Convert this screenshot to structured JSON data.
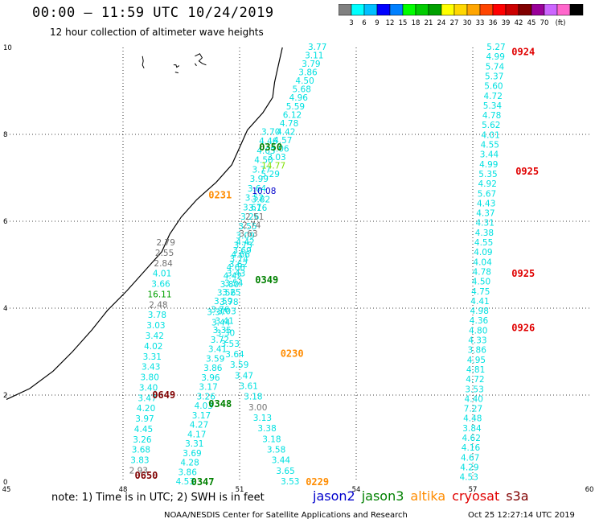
{
  "title": "00:00 – 11:59 UTC 10/24/2019",
  "subtitle": "12 hour collection of altimeter wave heights",
  "colorbar": {
    "colors": [
      "#808080",
      "#00ffff",
      "#00bfff",
      "#0000ff",
      "#0080ff",
      "#00ff00",
      "#00cc00",
      "#00a000",
      "#ffff00",
      "#ffd700",
      "#ffa500",
      "#ff4500",
      "#ff0000",
      "#cc0000",
      "#800000",
      "#990099",
      "#cc66ff",
      "#ff66cc",
      "#000000"
    ],
    "labels": [
      "3",
      "6",
      "9",
      "12",
      "15",
      "18",
      "21",
      "24",
      "27",
      "30",
      "33",
      "36",
      "39",
      "42",
      "45",
      "70",
      "(ft)"
    ]
  },
  "axes": {
    "x_ticks": [
      "45",
      "48",
      "51",
      "54",
      "57",
      "60"
    ],
    "y_ticks": [
      "0",
      "2",
      "4",
      "6",
      "8",
      "10"
    ]
  },
  "colors": {
    "cyan": "#00e0e0",
    "jason2": "#0000cc",
    "jason3": "#008000",
    "altika": "#ff8c00",
    "cryosat": "#e00000",
    "s3a": "#800000",
    "gray": "#707070",
    "lightgreen": "#80e000",
    "green": "#00a000"
  },
  "tracks": [
    {
      "id": "t1",
      "x0": 49.6,
      "y0": 0.0,
      "x1": 51.8,
      "y1": 8.05,
      "values": [
        "4.53",
        "3.86",
        "4.28",
        "3.69",
        "3.31",
        "4.17",
        "4.27",
        "3.17",
        "4.03",
        "3.26",
        "3.17",
        "3.96",
        "3.86",
        "3.59",
        "3.41",
        "3.72",
        "3.35",
        "3.41",
        "3.03",
        "3.78",
        "3.25",
        "3.54",
        "3.43",
        "3.62",
        "4.66",
        "3.75",
        "3.09",
        "3.55",
        "3.26",
        "3.67",
        "3.52",
        "3.64",
        "3.99",
        "3.77",
        "4.50",
        "4.63",
        "4.46",
        "3.70"
      ]
    },
    {
      "id": "t2",
      "x0": 52.3,
      "y0": 0.0,
      "x1": 50.4,
      "y1": 3.9,
      "values": [
        "3.53",
        "3.65",
        "3.44",
        "3.58",
        "3.18",
        "3.38",
        "3.13",
        "3.00",
        "3.18",
        "3.61",
        "3.47",
        "3.59",
        "3.64",
        "3.53",
        "3.30",
        "3.44",
        "3.37"
      ]
    },
    {
      "id": "t3",
      "x0": 50.5,
      "y0": 3.95,
      "x1": 53.0,
      "y1": 10.0,
      "values": [
        "3.76",
        "3.59",
        "3.56",
        "3.80",
        "4.42",
        "4.66",
        "3.74",
        "3.69",
        "4.42",
        "3.63",
        "2.74",
        "2.51",
        "3.16",
        "3.82",
        "10.08",
        "",
        "5.29",
        "14.77",
        "3.03",
        "4.06",
        "4.57",
        "4.42",
        "4.78",
        "6.12",
        "5.59",
        "4.96",
        "5.68",
        "4.50",
        "3.86",
        "3.79",
        "3.11",
        "3.77"
      ]
    },
    {
      "id": "t4",
      "x0": 48.4,
      "y0": 0.25,
      "x1": 49.1,
      "y1": 5.5,
      "values": [
        "2.93",
        "3.83",
        "3.68",
        "3.26",
        "4.45",
        "3.97",
        "4.20",
        "3.47",
        "3.40",
        "3.80",
        "3.43",
        "3.31",
        "4.02",
        "3.42",
        "3.03",
        "3.78",
        "2.48",
        "16.11",
        "3.66",
        "4.01",
        "2.84",
        "2.55",
        "2.79"
      ]
    },
    {
      "id": "t5",
      "x0": 56.9,
      "y0": 0.1,
      "x1": 57.6,
      "y1": 10.0,
      "values": [
        "4.53",
        "4.29",
        "4.67",
        "4.16",
        "4.62",
        "3.84",
        "4.48",
        "7.27",
        "4.40",
        "3.53",
        "4.72",
        "4.81",
        "4.95",
        "3.86",
        "4.33",
        "4.80",
        "4.36",
        "4.98",
        "4.41",
        "4.75",
        "4.50",
        "4.78",
        "4.04",
        "4.09",
        "4.55",
        "4.38",
        "4.31",
        "4.37",
        "4.43",
        "5.67",
        "4.92",
        "5.35",
        "4.99",
        "3.44",
        "4.55",
        "4.01",
        "5.62",
        "4.78",
        "5.34",
        "4.72",
        "5.60",
        "5.37",
        "5.74",
        "4.99",
        "5.27"
      ]
    }
  ],
  "value_colors": {
    "t3:14.77": "lightgreen",
    "t3:10.08": "jason2",
    "t3:2.51": "gray",
    "t3:2.74": "gray",
    "t3:3.63": "gray",
    "t2:3.00": "gray",
    "t4:2.93": "gray",
    "t4:2.48": "gray",
    "t4:16.11": "green",
    "t4:2.84": "gray",
    "t4:2.55": "gray",
    "t4:2.79": "gray"
  },
  "time_labels": [
    {
      "text": "0350",
      "x": 51.5,
      "y": 7.7,
      "color": "jason3"
    },
    {
      "text": "0231",
      "x": 50.2,
      "y": 6.6,
      "color": "altika"
    },
    {
      "text": "0349",
      "x": 51.4,
      "y": 4.65,
      "color": "jason3"
    },
    {
      "text": "0230",
      "x": 52.05,
      "y": 2.95,
      "color": "altika"
    },
    {
      "text": "0348",
      "x": 50.2,
      "y": 1.8,
      "color": "jason3"
    },
    {
      "text": "0347",
      "x": 49.75,
      "y": 0.0,
      "color": "jason3"
    },
    {
      "text": "0229",
      "x": 52.7,
      "y": 0.0,
      "color": "altika"
    },
    {
      "text": "0649",
      "x": 48.75,
      "y": 2.0,
      "color": "s3a"
    },
    {
      "text": "0650",
      "x": 48.3,
      "y": 0.15,
      "color": "s3a"
    },
    {
      "text": "0924",
      "x": 58.0,
      "y": 9.9,
      "color": "cryosat"
    },
    {
      "text": "0925",
      "x": 58.1,
      "y": 7.15,
      "color": "cryosat"
    },
    {
      "text": "0925",
      "x": 58.0,
      "y": 4.8,
      "color": "cryosat"
    },
    {
      "text": "0926",
      "x": 58.0,
      "y": 3.55,
      "color": "cryosat"
    }
  ],
  "note": "note: 1) Time is in UTC; 2) SWH is in feet",
  "legend": [
    {
      "text": "jason2",
      "color": "jason2"
    },
    {
      "text": "jason3",
      "color": "jason3"
    },
    {
      "text": "altika",
      "color": "altika"
    },
    {
      "text": "cryosat",
      "color": "cryosat"
    },
    {
      "text": "s3a",
      "color": "s3a"
    }
  ],
  "credit": "NOAA/NESDIS Center for Satellite Applications and Research",
  "credit_date": "Oct 25 12:27:14 UTC 2019"
}
